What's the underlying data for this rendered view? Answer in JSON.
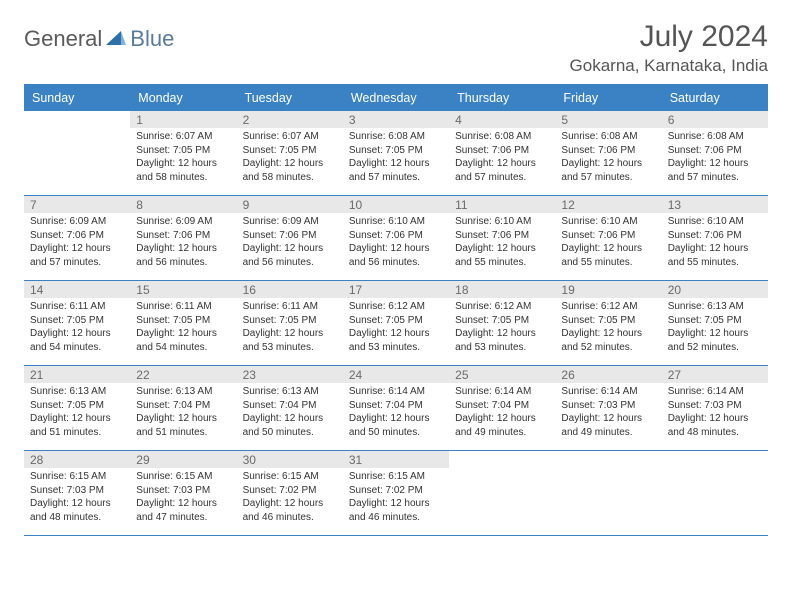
{
  "logo": {
    "part1": "General",
    "part2": "Blue"
  },
  "title": "July 2024",
  "location": "Gokarna, Karnataka, India",
  "colors": {
    "header_bg": "#3b82c4",
    "header_text": "#ffffff",
    "daynum_bg": "#e8e8e8",
    "daynum_text": "#6a6a6a",
    "body_text": "#333333",
    "title_text": "#555555",
    "rule": "#3b82c4"
  },
  "fonts": {
    "title_size_pt": 22,
    "location_size_pt": 13,
    "dayhead_size_pt": 9.5,
    "daynum_size_pt": 9,
    "detail_size_pt": 7.5
  },
  "day_names": [
    "Sunday",
    "Monday",
    "Tuesday",
    "Wednesday",
    "Thursday",
    "Friday",
    "Saturday"
  ],
  "weeks": [
    [
      {
        "n": "",
        "sr": "",
        "ss": "",
        "dl": ""
      },
      {
        "n": "1",
        "sr": "6:07 AM",
        "ss": "7:05 PM",
        "dl": "12 hours and 58 minutes."
      },
      {
        "n": "2",
        "sr": "6:07 AM",
        "ss": "7:05 PM",
        "dl": "12 hours and 58 minutes."
      },
      {
        "n": "3",
        "sr": "6:08 AM",
        "ss": "7:05 PM",
        "dl": "12 hours and 57 minutes."
      },
      {
        "n": "4",
        "sr": "6:08 AM",
        "ss": "7:06 PM",
        "dl": "12 hours and 57 minutes."
      },
      {
        "n": "5",
        "sr": "6:08 AM",
        "ss": "7:06 PM",
        "dl": "12 hours and 57 minutes."
      },
      {
        "n": "6",
        "sr": "6:08 AM",
        "ss": "7:06 PM",
        "dl": "12 hours and 57 minutes."
      }
    ],
    [
      {
        "n": "7",
        "sr": "6:09 AM",
        "ss": "7:06 PM",
        "dl": "12 hours and 57 minutes."
      },
      {
        "n": "8",
        "sr": "6:09 AM",
        "ss": "7:06 PM",
        "dl": "12 hours and 56 minutes."
      },
      {
        "n": "9",
        "sr": "6:09 AM",
        "ss": "7:06 PM",
        "dl": "12 hours and 56 minutes."
      },
      {
        "n": "10",
        "sr": "6:10 AM",
        "ss": "7:06 PM",
        "dl": "12 hours and 56 minutes."
      },
      {
        "n": "11",
        "sr": "6:10 AM",
        "ss": "7:06 PM",
        "dl": "12 hours and 55 minutes."
      },
      {
        "n": "12",
        "sr": "6:10 AM",
        "ss": "7:06 PM",
        "dl": "12 hours and 55 minutes."
      },
      {
        "n": "13",
        "sr": "6:10 AM",
        "ss": "7:06 PM",
        "dl": "12 hours and 55 minutes."
      }
    ],
    [
      {
        "n": "14",
        "sr": "6:11 AM",
        "ss": "7:05 PM",
        "dl": "12 hours and 54 minutes."
      },
      {
        "n": "15",
        "sr": "6:11 AM",
        "ss": "7:05 PM",
        "dl": "12 hours and 54 minutes."
      },
      {
        "n": "16",
        "sr": "6:11 AM",
        "ss": "7:05 PM",
        "dl": "12 hours and 53 minutes."
      },
      {
        "n": "17",
        "sr": "6:12 AM",
        "ss": "7:05 PM",
        "dl": "12 hours and 53 minutes."
      },
      {
        "n": "18",
        "sr": "6:12 AM",
        "ss": "7:05 PM",
        "dl": "12 hours and 53 minutes."
      },
      {
        "n": "19",
        "sr": "6:12 AM",
        "ss": "7:05 PM",
        "dl": "12 hours and 52 minutes."
      },
      {
        "n": "20",
        "sr": "6:13 AM",
        "ss": "7:05 PM",
        "dl": "12 hours and 52 minutes."
      }
    ],
    [
      {
        "n": "21",
        "sr": "6:13 AM",
        "ss": "7:05 PM",
        "dl": "12 hours and 51 minutes."
      },
      {
        "n": "22",
        "sr": "6:13 AM",
        "ss": "7:04 PM",
        "dl": "12 hours and 51 minutes."
      },
      {
        "n": "23",
        "sr": "6:13 AM",
        "ss": "7:04 PM",
        "dl": "12 hours and 50 minutes."
      },
      {
        "n": "24",
        "sr": "6:14 AM",
        "ss": "7:04 PM",
        "dl": "12 hours and 50 minutes."
      },
      {
        "n": "25",
        "sr": "6:14 AM",
        "ss": "7:04 PM",
        "dl": "12 hours and 49 minutes."
      },
      {
        "n": "26",
        "sr": "6:14 AM",
        "ss": "7:03 PM",
        "dl": "12 hours and 49 minutes."
      },
      {
        "n": "27",
        "sr": "6:14 AM",
        "ss": "7:03 PM",
        "dl": "12 hours and 48 minutes."
      }
    ],
    [
      {
        "n": "28",
        "sr": "6:15 AM",
        "ss": "7:03 PM",
        "dl": "12 hours and 48 minutes."
      },
      {
        "n": "29",
        "sr": "6:15 AM",
        "ss": "7:03 PM",
        "dl": "12 hours and 47 minutes."
      },
      {
        "n": "30",
        "sr": "6:15 AM",
        "ss": "7:02 PM",
        "dl": "12 hours and 46 minutes."
      },
      {
        "n": "31",
        "sr": "6:15 AM",
        "ss": "7:02 PM",
        "dl": "12 hours and 46 minutes."
      },
      {
        "n": "",
        "sr": "",
        "ss": "",
        "dl": ""
      },
      {
        "n": "",
        "sr": "",
        "ss": "",
        "dl": ""
      },
      {
        "n": "",
        "sr": "",
        "ss": "",
        "dl": ""
      }
    ]
  ],
  "labels": {
    "sunrise": "Sunrise:",
    "sunset": "Sunset:",
    "daylight": "Daylight:"
  }
}
